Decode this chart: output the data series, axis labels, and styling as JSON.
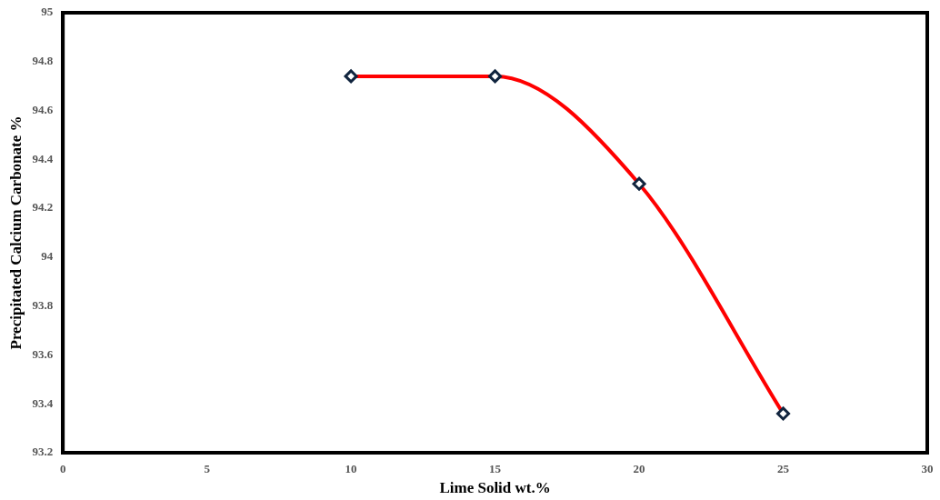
{
  "chart_data": {
    "type": "line",
    "xlabel": "Lime Solid wt.%",
    "ylabel": "Precipitated Calcium Carbonate %",
    "x": [
      10,
      15,
      20,
      25
    ],
    "series": [
      {
        "color": "#ff0000",
        "values": [
          94.74,
          94.74,
          94.3,
          93.36
        ]
      }
    ],
    "xlim": [
      0,
      30
    ],
    "xticks": [
      0,
      5,
      10,
      15,
      20,
      25,
      30
    ],
    "ylim": [
      93.2,
      95
    ],
    "yticks": [
      93.2,
      93.4,
      93.6,
      93.8,
      94,
      94.2,
      94.4,
      94.6,
      94.8,
      95
    ],
    "grid": false,
    "legend": false,
    "marker": "diamond",
    "line_style": "solid"
  }
}
